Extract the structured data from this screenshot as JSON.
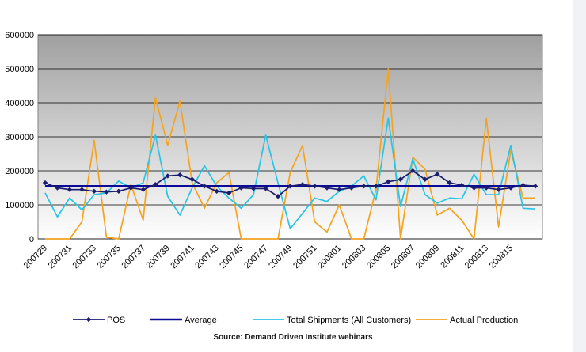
{
  "chart_data": {
    "type": "line",
    "title": "",
    "xlabel": "",
    "ylabel": "",
    "ylim": [
      0,
      600000
    ],
    "yticks": [
      "0",
      "100000",
      "200000",
      "300000",
      "400000",
      "500000",
      "600000"
    ],
    "grid": true,
    "legend_position": "bottom",
    "x_tick_labels": [
      "200729",
      "200731",
      "200733",
      "200735",
      "200737",
      "200739",
      "200741",
      "200743",
      "200745",
      "200747",
      "200749",
      "200751",
      "200801",
      "200803",
      "200805",
      "200807",
      "200809",
      "200811",
      "200813",
      "200815"
    ],
    "series": [
      {
        "name": "POS",
        "color": "#1c1c6e",
        "marker": "diamond",
        "values": [
          165000,
          150000,
          145000,
          145000,
          140000,
          138000,
          140000,
          150000,
          145000,
          160000,
          185000,
          188000,
          175000,
          155000,
          140000,
          135000,
          150000,
          148000,
          148000,
          125000,
          155000,
          160000,
          155000,
          150000,
          145000,
          150000,
          155000,
          155000,
          168000,
          175000,
          200000,
          175000,
          190000,
          165000,
          158000,
          150000,
          150000,
          145000,
          150000,
          158000,
          155000
        ]
      },
      {
        "name": "Average",
        "color": "#0a0a96",
        "values": [
          155000,
          155000,
          155000,
          155000,
          155000,
          155000,
          155000,
          155000,
          155000,
          155000,
          155000,
          155000,
          155000,
          155000,
          155000,
          155000,
          155000,
          155000,
          155000,
          155000,
          155000,
          155000,
          155000,
          155000,
          155000,
          155000,
          155000,
          155000,
          155000,
          155000,
          155000,
          155000,
          155000,
          155000,
          155000,
          155000,
          155000,
          155000,
          155000,
          155000,
          155000
        ]
      },
      {
        "name": "Total Shipments (All Customers)",
        "color": "#27c4e6",
        "values": [
          135000,
          65000,
          120000,
          85000,
          130000,
          135000,
          170000,
          150000,
          165000,
          305000,
          125000,
          70000,
          150000,
          215000,
          155000,
          120000,
          90000,
          130000,
          305000,
          165000,
          30000,
          75000,
          120000,
          110000,
          140000,
          155000,
          185000,
          115000,
          355000,
          95000,
          235000,
          130000,
          105000,
          120000,
          118000,
          190000,
          130000,
          130000,
          275000,
          90000,
          88000
        ]
      },
      {
        "name": "Actual Production",
        "color": "#f5a31f",
        "values": [
          0,
          0,
          0,
          50000,
          290000,
          5000,
          0,
          160000,
          55000,
          415000,
          275000,
          405000,
          165000,
          90000,
          165000,
          195000,
          0,
          0,
          0,
          0,
          195000,
          275000,
          50000,
          20000,
          100000,
          0,
          0,
          145000,
          500000,
          0,
          240000,
          205000,
          70000,
          90000,
          55000,
          0,
          355000,
          35000,
          260000,
          120000,
          120000
        ]
      }
    ]
  },
  "source": "Source: Demand Driven Institute webinars"
}
